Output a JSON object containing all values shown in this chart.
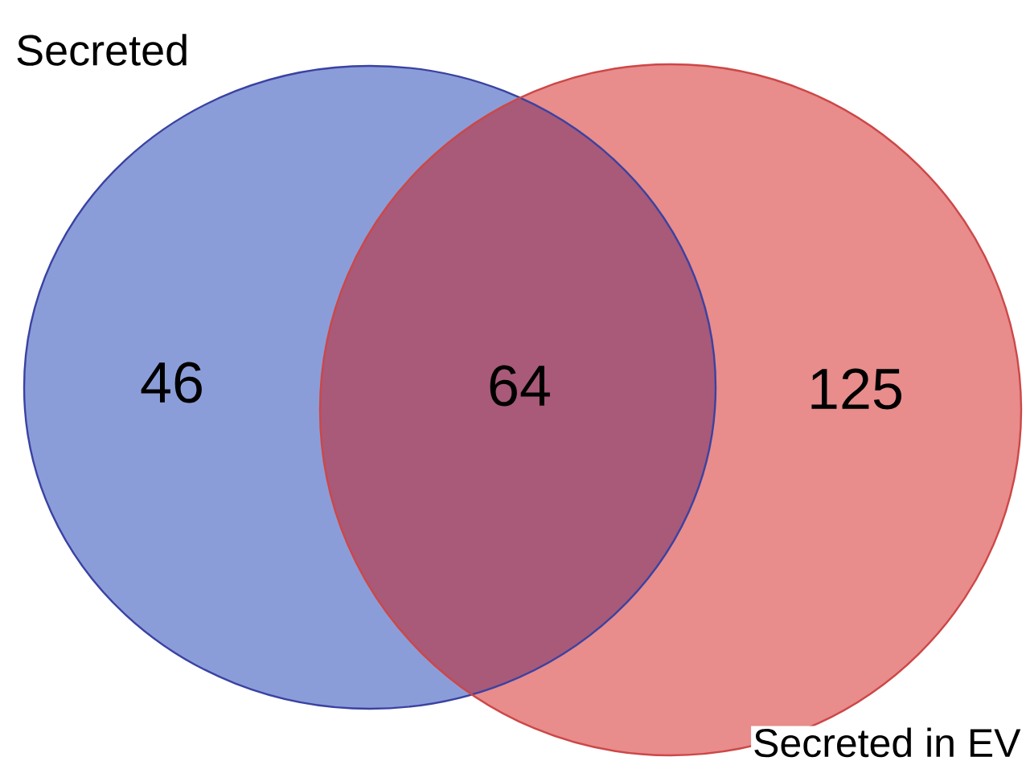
{
  "chart_data": {
    "type": "other",
    "categories": [
      null,
      null,
      null
    ],
    "values": [
      46,
      64,
      125
    ],
    "data_labels": true,
    "colors": [
      "#8b9dd9",
      "#a85a78",
      "#e88c8c"
    ],
    "annotations": [
      "Secreted",
      "Secreted in EV"
    ]
  }
}
